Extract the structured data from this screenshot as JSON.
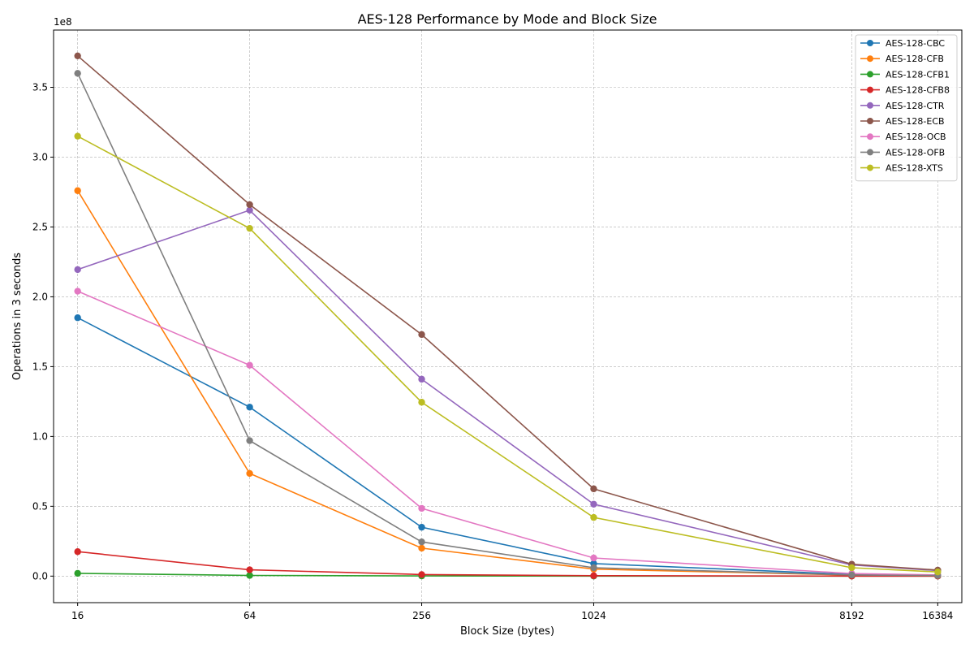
{
  "chart_data": {
    "type": "line",
    "title": "AES-128 Performance by Mode and Block Size",
    "xlabel": "Block Size (bytes)",
    "ylabel": "Operations in 3 seconds",
    "y_offset_label": "1e8",
    "x_scale": "log2",
    "x": [
      16,
      64,
      256,
      1024,
      8192,
      16384
    ],
    "x_tick_labels": [
      "16",
      "64",
      "256",
      "1024",
      "8192",
      "16384"
    ],
    "y_ticks": [
      0,
      50000000,
      100000000,
      150000000,
      200000000,
      250000000,
      300000000,
      350000000
    ],
    "y_tick_labels": [
      "0.0",
      "0.5",
      "1.0",
      "1.5",
      "2.0",
      "2.5",
      "3.0",
      "3.5"
    ],
    "ylim": [
      -19000000,
      391000000
    ],
    "grid": true,
    "legend_position": "top-right",
    "series": [
      {
        "name": "AES-128-CBC",
        "color": "#1f77b4",
        "values": [
          185000000,
          121000000,
          35000000,
          9000000,
          1200000,
          600000
        ]
      },
      {
        "name": "AES-128-CFB",
        "color": "#ff7f0e",
        "values": [
          276000000,
          73500000,
          20000000,
          5000000,
          700000,
          350000
        ]
      },
      {
        "name": "AES-128-CFB1",
        "color": "#2ca02c",
        "values": [
          2000000,
          500000,
          130000,
          30000,
          4000,
          2000
        ]
      },
      {
        "name": "AES-128-CFB8",
        "color": "#d62728",
        "values": [
          17500000,
          4500000,
          1100000,
          280000,
          35000,
          17000
        ]
      },
      {
        "name": "AES-128-CTR",
        "color": "#9467bd",
        "values": [
          219500000,
          262000000,
          141000000,
          51500000,
          8000000,
          4000000
        ]
      },
      {
        "name": "AES-128-ECB",
        "color": "#8c564b",
        "values": [
          372500000,
          266000000,
          173000000,
          62500000,
          8500000,
          4300000
        ]
      },
      {
        "name": "AES-128-OCB",
        "color": "#e377c2",
        "values": [
          204000000,
          151000000,
          48500000,
          13000000,
          1800000,
          900000
        ]
      },
      {
        "name": "AES-128-OFB",
        "color": "#7f7f7f",
        "values": [
          360000000,
          97000000,
          24500000,
          6000000,
          800000,
          400000
        ]
      },
      {
        "name": "AES-128-XTS",
        "color": "#bcbd22",
        "values": [
          315000000,
          249000000,
          124500000,
          42000000,
          6000000,
          3000000
        ]
      }
    ]
  }
}
